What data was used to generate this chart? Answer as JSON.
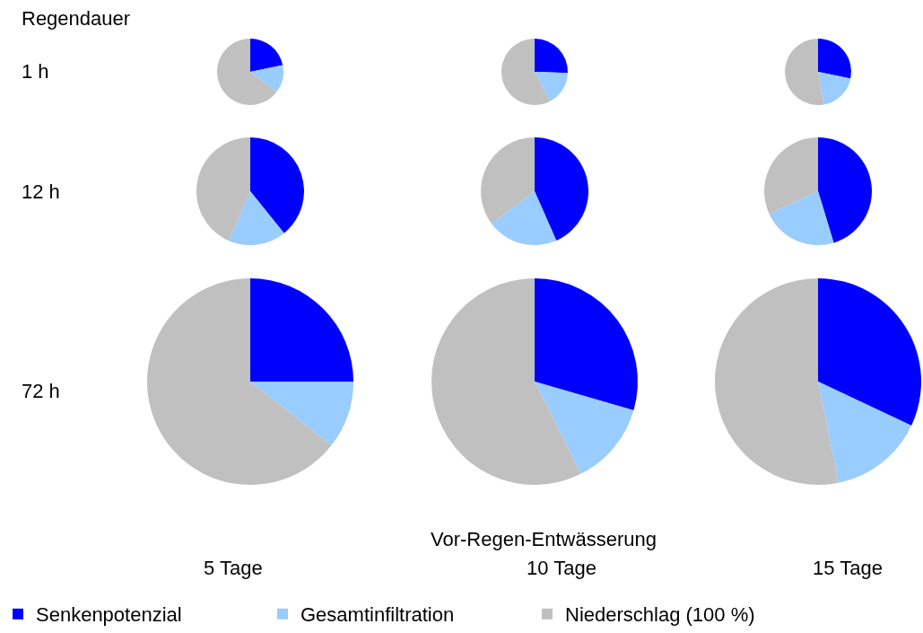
{
  "chart_data": [
    {
      "type": "pie",
      "ylabel": "1 h",
      "annotations": [
        "Regendauer"
      ],
      "legend": "bottom",
      "categories": [
        "Senkenpotenzial",
        "Gesamtinfiltration",
        "Niederschlag (100 %)"
      ],
      "values": [
        21.7,
        13.6,
        64.7
      ],
      "colors": [
        "#0000ff",
        "#99ccff",
        "#c0c0c0"
      ]
    },
    {
      "type": "pie",
      "categories": [
        null,
        null,
        null
      ],
      "values": [
        25.5,
        16.7,
        57.8
      ],
      "colors": [
        "#0000ff",
        "#99ccff",
        "#c0c0c0"
      ]
    },
    {
      "type": "pie",
      "categories": [
        null,
        null,
        null
      ],
      "values": [
        28.2,
        18.9,
        52.9
      ],
      "colors": [
        "#0000ff",
        "#99ccff",
        "#c0c0c0"
      ]
    },
    {
      "type": "pie",
      "ylabel": "12 h",
      "categories": [
        null,
        null,
        null
      ],
      "values": [
        39.2,
        17.4,
        43.4
      ],
      "colors": [
        "#0000ff",
        "#99ccff",
        "#c0c0c0"
      ]
    },
    {
      "type": "pie",
      "categories": [
        null,
        null,
        null
      ],
      "values": [
        43.4,
        21.3,
        35.3
      ],
      "colors": [
        "#0000ff",
        "#99ccff",
        "#c0c0c0"
      ]
    },
    {
      "type": "pie",
      "categories": [
        null,
        null,
        null
      ],
      "values": [
        45.3,
        22.8,
        31.9
      ],
      "colors": [
        "#0000ff",
        "#99ccff",
        "#c0c0c0"
      ]
    },
    {
      "type": "pie",
      "ylabel": "72 h",
      "xlabel": "5 Tage",
      "categories": [
        null,
        null,
        null
      ],
      "values": [
        25,
        10.6,
        64.4
      ],
      "colors": [
        "#0000ff",
        "#99ccff",
        "#c0c0c0"
      ]
    },
    {
      "type": "pie",
      "xlabel": "10 Tage",
      "annotations": [
        "Vor-Regen-Entwässerung"
      ],
      "categories": [
        null,
        null,
        null
      ],
      "values": [
        29.5,
        13.1,
        57.4
      ],
      "colors": [
        "#0000ff",
        "#99ccff",
        "#c0c0c0"
      ]
    },
    {
      "type": "pie",
      "xlabel": "15 Tage",
      "categories": [
        null,
        null,
        null
      ],
      "values": [
        32,
        14.8,
        53.2
      ],
      "colors": [
        "#0000ff",
        "#99ccff",
        "#c0c0c0"
      ]
    }
  ]
}
